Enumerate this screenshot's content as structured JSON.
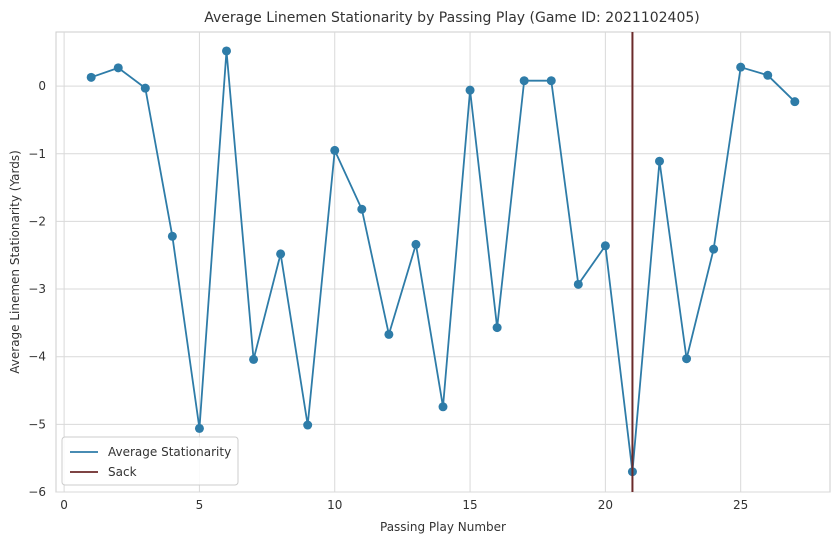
{
  "chart_data": {
    "type": "line",
    "title": "Average Linemen Stationarity by Passing Play (Game ID: 2021102405)",
    "xlabel": "Passing Play Number",
    "ylabel": "Average Linemen Stationarity (Yards)",
    "xlim": [
      -0.3,
      28.3
    ],
    "ylim": [
      -6.0,
      0.8
    ],
    "xticks": [
      0,
      5,
      10,
      15,
      20,
      25
    ],
    "yticks": [
      0,
      -1,
      -2,
      -3,
      -4,
      -5,
      -6
    ],
    "xtick_labels": [
      "0",
      "5",
      "10",
      "15",
      "20",
      "25"
    ],
    "ytick_labels": [
      "0",
      "−1",
      "−2",
      "−3",
      "−4",
      "−5",
      "−6"
    ],
    "grid": true,
    "legend_position": "lower-left",
    "series": [
      {
        "name": "Average Stationarity",
        "color": "#2e7ca8",
        "x": [
          1,
          2,
          3,
          4,
          5,
          6,
          7,
          8,
          9,
          10,
          11,
          12,
          13,
          14,
          15,
          16,
          17,
          18,
          19,
          20,
          21,
          22,
          23,
          24,
          25,
          26,
          27
        ],
        "y": [
          0.13,
          0.27,
          -0.03,
          -2.22,
          -5.06,
          0.52,
          -4.04,
          -2.48,
          -5.01,
          -0.95,
          -1.82,
          -3.67,
          -2.34,
          -4.74,
          -0.06,
          -3.57,
          0.08,
          0.08,
          -2.93,
          -2.36,
          -5.7,
          -1.11,
          -4.03,
          -2.41,
          0.28,
          0.16,
          -0.23
        ]
      }
    ],
    "vline": {
      "name": "Sack",
      "x": 21,
      "color": "#6b2a2a"
    }
  }
}
